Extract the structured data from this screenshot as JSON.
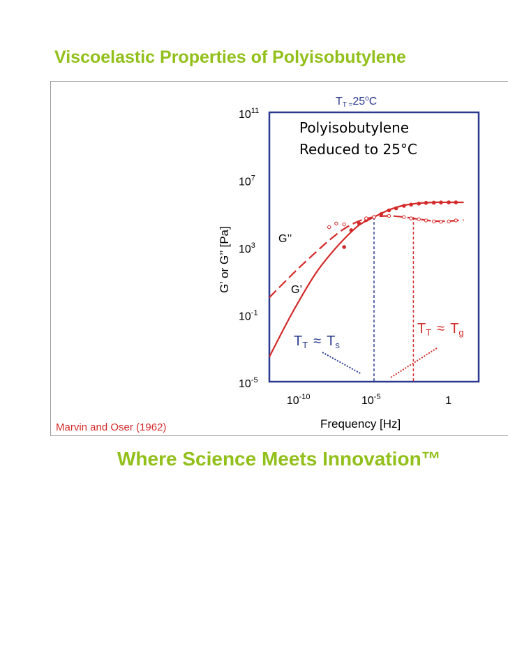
{
  "slide": {
    "title": "Viscoelastic Properties of Polyisobutylene",
    "citation": "Marvin and Oser (1962)",
    "tagline": "Where Science Meets Innovation™",
    "title_color": "#92c01a",
    "citation_color": "#d42a2a"
  },
  "chart_data": {
    "type": "line",
    "title": "",
    "xlabel": "Frequency [Hz]",
    "ylabel": "G’ or G’’ [Pa]",
    "xscale": "log",
    "yscale": "log",
    "xlim": [
      1e-12,
      100
    ],
    "ylim": [
      1e-05,
      100000000000.0
    ],
    "x_ticks": [
      {
        "base": "10",
        "exp": "-10"
      },
      {
        "base": "10",
        "exp": "-5"
      },
      {
        "base": "1",
        "exp": ""
      }
    ],
    "y_ticks": [
      {
        "base": "10",
        "exp": "11"
      },
      {
        "base": "10",
        "exp": "7"
      },
      {
        "base": "10",
        "exp": "3"
      },
      {
        "base": "10",
        "exp": "-1"
      },
      {
        "base": "10",
        "exp": "-5"
      }
    ],
    "header": {
      "t": "T",
      "sub": "T =",
      "value": "25",
      "sup": "o",
      "unit": "C"
    },
    "inset_lines": [
      "Polyisobutylene",
      "Reduced to 25°C"
    ],
    "series": [
      {
        "name": "G’",
        "style": "solid",
        "color": "#d42a2a",
        "x": [
          1e-12,
          3e-11,
          1e-09,
          1e-08,
          1e-07,
          1e-06,
          1e-05,
          0.0001,
          0.001,
          0.01,
          0.1,
          1,
          10
        ],
        "y": [
          0.0003,
          0.1,
          20,
          300,
          3000,
          20000,
          60000,
          160000,
          300000,
          400000,
          450000,
          450000,
          450000
        ]
      },
      {
        "name": "G’’",
        "style": "dashed",
        "color": "#d42a2a",
        "x": [
          1e-12,
          1e-11,
          1e-10,
          1e-09,
          1e-08,
          1e-07,
          1e-06,
          1e-05,
          0.0001,
          0.001,
          0.01,
          0.1,
          1,
          10
        ],
        "y": [
          1,
          8,
          60,
          400,
          2500,
          12000,
          35000,
          60000,
          70000,
          60000,
          45000,
          35000,
          35000,
          40000
        ]
      }
    ],
    "measured_points": [
      {
        "series": "G’",
        "marker": "filled",
        "x": [
          1e-07,
          3e-07,
          1e-06,
          3e-06,
          1e-05,
          3e-05,
          0.0001,
          0.0003,
          0.001,
          0.003,
          0.01,
          0.03,
          0.1,
          0.3,
          1,
          3
        ],
        "y": [
          1000,
          10000,
          25000,
          40000,
          60000,
          90000,
          150000,
          200000,
          280000,
          330000,
          380000,
          420000,
          430000,
          440000,
          450000,
          450000
        ]
      },
      {
        "series": "G’’",
        "marker": "open",
        "x": [
          1e-08,
          3e-08,
          1e-07,
          3e-06,
          1e-05,
          0.0001,
          0.001,
          0.003,
          0.01,
          0.03,
          0.1,
          0.3,
          1,
          3
        ],
        "y": [
          15000,
          25000,
          22000,
          50000,
          60000,
          70000,
          60000,
          50000,
          45000,
          38000,
          33000,
          32000,
          33000,
          38000
        ]
      }
    ],
    "series_labels": [
      {
        "text": "G’’",
        "color": "#d42a2a"
      },
      {
        "text": "G’",
        "color": "#d42a2a"
      }
    ],
    "markers": [
      {
        "name": "Ts",
        "x": 1e-05,
        "color": "#2b3a8f",
        "style": "dashed"
      },
      {
        "name": "Tg",
        "x": 0.0001,
        "color": "#d42a2a",
        "style": "dashed"
      }
    ],
    "annotations": [
      {
        "t": "T",
        "sub": "T",
        "rel": "≈",
        "t2": "T",
        "sub2": "s",
        "color": "#2b3a8f"
      },
      {
        "t": "T",
        "sub": "T",
        "rel": "≈",
        "t2": "T",
        "sub2": "g",
        "color": "#d42a2a"
      }
    ],
    "frame_color": "#2b3a8f",
    "grid": false
  }
}
